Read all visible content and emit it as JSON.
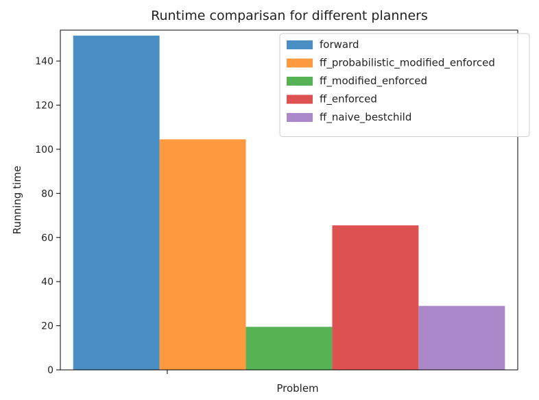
{
  "chart_data": {
    "type": "bar",
    "title": "Runtime comparisan for different planners",
    "xlabel": "Problem",
    "ylabel": "Running time",
    "categories": [
      ""
    ],
    "ylim": [
      0,
      154
    ],
    "yticks": [
      0,
      20,
      40,
      60,
      80,
      100,
      120,
      140
    ],
    "grid": false,
    "legend_position": "top-right",
    "series": [
      {
        "name": "forward",
        "values": [
          151.5
        ],
        "color": "#4a8fc3"
      },
      {
        "name": "ff_probabilistic_modified_enforced",
        "values": [
          104.5
        ],
        "color": "#ff9a40"
      },
      {
        "name": "ff_modified_enforced",
        "values": [
          19.5
        ],
        "color": "#55b355"
      },
      {
        "name": "ff_enforced",
        "values": [
          65.5
        ],
        "color": "#de5151"
      },
      {
        "name": "ff_naive_bestchild",
        "values": [
          29.0
        ],
        "color": "#aa88c9"
      }
    ]
  }
}
